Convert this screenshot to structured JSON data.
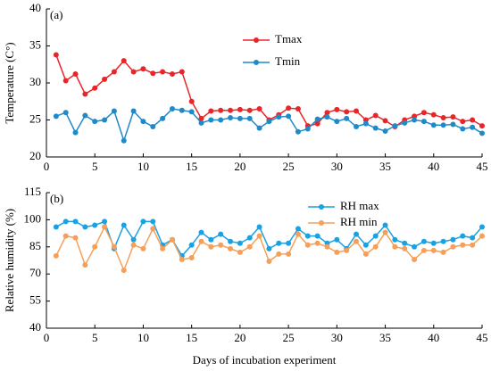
{
  "chart_data": [
    {
      "type": "line",
      "annotation": "(a)",
      "ylabel": "Temperature (C°)",
      "x": [
        1,
        2,
        3,
        4,
        5,
        6,
        7,
        8,
        9,
        10,
        11,
        12,
        13,
        14,
        15,
        16,
        17,
        18,
        19,
        20,
        21,
        22,
        23,
        24,
        25,
        26,
        27,
        28,
        29,
        30,
        31,
        32,
        33,
        34,
        35,
        36,
        37,
        38,
        39,
        40,
        41,
        42,
        43,
        44,
        45
      ],
      "xlim": [
        0,
        45
      ],
      "xticks": [
        0,
        5,
        10,
        15,
        20,
        25,
        30,
        35,
        40,
        45
      ],
      "ylim": [
        20,
        40
      ],
      "yticks": [
        20,
        25,
        30,
        35,
        40
      ],
      "legend": "upper center",
      "series": [
        {
          "name": "Tmax",
          "color": "#e8262a",
          "values": [
            33.8,
            30.3,
            31.2,
            28.5,
            29.3,
            30.5,
            31.5,
            33.0,
            31.5,
            31.9,
            31.3,
            31.5,
            31.2,
            31.5,
            27.5,
            25.2,
            26.2,
            26.3,
            26.3,
            26.4,
            26.3,
            26.5,
            25.0,
            25.7,
            26.6,
            26.5,
            24.2,
            24.5,
            26.0,
            26.4,
            26.1,
            26.2,
            25.0,
            25.6,
            24.9,
            24.1,
            25.0,
            25.5,
            26.0,
            25.7,
            25.3,
            25.4,
            24.8,
            25.0,
            24.2
          ]
        },
        {
          "name": "Tmin",
          "color": "#1f8ac9",
          "values": [
            25.5,
            26.0,
            23.3,
            25.6,
            24.8,
            25.0,
            26.2,
            22.2,
            26.2,
            24.8,
            24.1,
            25.2,
            26.5,
            26.3,
            26.1,
            24.6,
            25.0,
            25.0,
            25.3,
            25.2,
            25.2,
            23.9,
            24.8,
            25.4,
            25.5,
            23.4,
            23.8,
            25.1,
            25.4,
            24.8,
            25.2,
            24.1,
            24.5,
            23.9,
            23.5,
            24.2,
            24.6,
            25.0,
            24.8,
            24.3,
            24.3,
            24.4,
            23.8,
            24.0,
            23.2
          ]
        }
      ]
    },
    {
      "type": "line",
      "annotation": "(b)",
      "ylabel": "Relative humidity (%)",
      "xlabel": "Days of incubation experiment",
      "x": [
        1,
        2,
        3,
        4,
        5,
        6,
        7,
        8,
        9,
        10,
        11,
        12,
        13,
        14,
        15,
        16,
        17,
        18,
        19,
        20,
        21,
        22,
        23,
        24,
        25,
        26,
        27,
        28,
        29,
        30,
        31,
        32,
        33,
        34,
        35,
        36,
        37,
        38,
        39,
        40,
        41,
        42,
        43,
        44,
        45
      ],
      "xlim": [
        0,
        45
      ],
      "xticks": [
        0,
        5,
        10,
        15,
        20,
        25,
        30,
        35,
        40,
        45
      ],
      "ylim": [
        40,
        115
      ],
      "yticks": [
        40,
        55,
        70,
        85,
        100,
        115
      ],
      "legend": "upper right",
      "series": [
        {
          "name": "RH max",
          "color": "#1ba1e2",
          "values": [
            96,
            99,
            99,
            96,
            97,
            99,
            84,
            97,
            89,
            99,
            99,
            86,
            89,
            80,
            86,
            93,
            89,
            92,
            88,
            87,
            90,
            96,
            84,
            87,
            87,
            95,
            91,
            91,
            87,
            89,
            84,
            92,
            86,
            91,
            97,
            89,
            87,
            85,
            88,
            87,
            88,
            89,
            91,
            90,
            96
          ]
        },
        {
          "name": "RH min",
          "color": "#f5a05a",
          "values": [
            80,
            91,
            90,
            75,
            85,
            96,
            85,
            72,
            86,
            84,
            95,
            84,
            89,
            78,
            79,
            88,
            85,
            86,
            84,
            82,
            85,
            91,
            77,
            81,
            81,
            92,
            86,
            87,
            85,
            82,
            83,
            88,
            81,
            85,
            93,
            85,
            84,
            78,
            83,
            83,
            82,
            85,
            86,
            86,
            91
          ]
        }
      ]
    }
  ]
}
